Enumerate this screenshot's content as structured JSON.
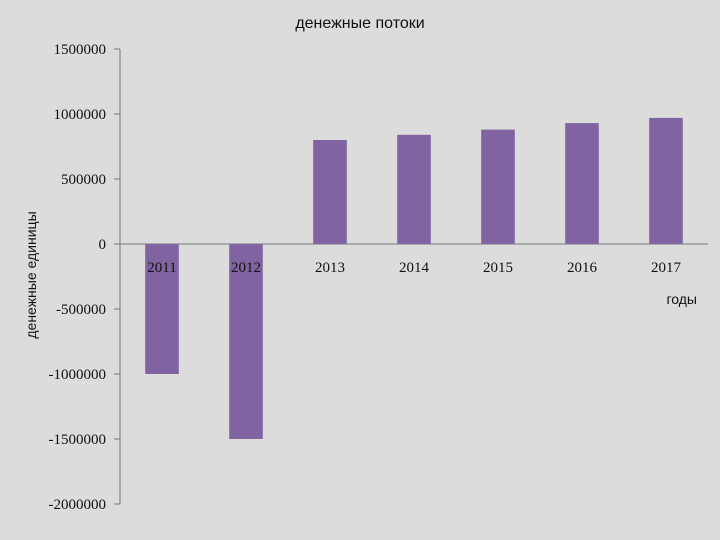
{
  "chart_data": {
    "type": "bar",
    "title": "денежные потоки",
    "xlabel": "годы",
    "ylabel": "денежные единицы",
    "categories": [
      "2011",
      "2012",
      "2013",
      "2014",
      "2015",
      "2016",
      "2017"
    ],
    "values": [
      -1000000,
      -1500000,
      800000,
      840000,
      880000,
      930000,
      970000
    ],
    "ylim": [
      -2000000,
      1500000
    ],
    "yticks": [
      "1500000",
      "1000000",
      "500000",
      "0",
      "-500000",
      "-1000000",
      "-1500000",
      "-2000000"
    ],
    "ytick_values": [
      1500000,
      1000000,
      500000,
      0,
      -500000,
      -1000000,
      -1500000,
      -2000000
    ],
    "grid": false,
    "bar_color": "#8064a2"
  }
}
